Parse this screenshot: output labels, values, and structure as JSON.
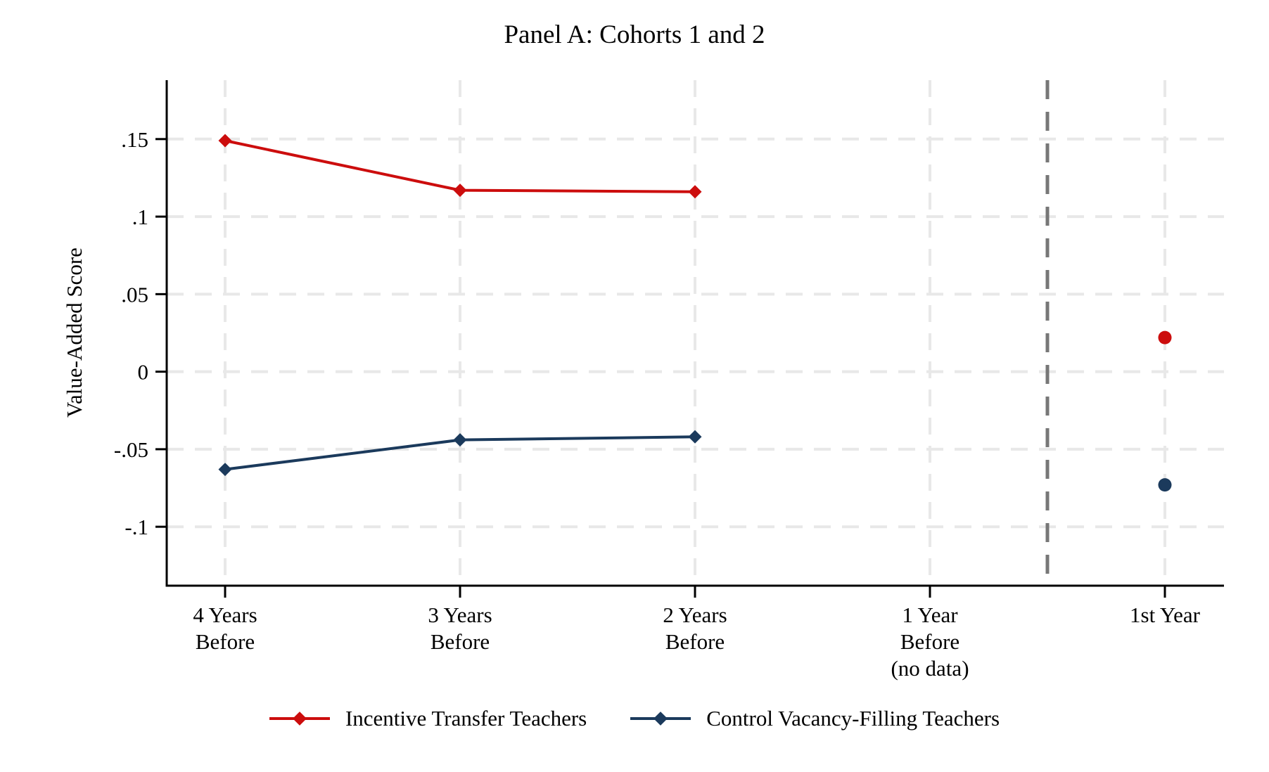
{
  "title": "Panel A: Cohorts 1 and 2",
  "chart_data": {
    "type": "line",
    "title": "Panel A: Cohorts 1 and 2",
    "xlabel": "",
    "ylabel": "Value-Added Score",
    "categories": [
      "4 Years\nBefore",
      "3 Years\nBefore",
      "2 Years\nBefore",
      "1 Year\nBefore\n(no data)",
      "1st Year"
    ],
    "yticks": [
      0.15,
      0.1,
      0.05,
      0,
      -0.05,
      -0.1
    ],
    "ytick_labels": [
      ".15",
      ".1",
      ".05",
      "0",
      "-.05",
      "-.1"
    ],
    "ylim": [
      -0.138,
      0.188
    ],
    "grid": true,
    "grid_style": "dashed",
    "legend_position": "bottom",
    "series": [
      {
        "name": "Incentive Transfer Teachers",
        "color": "#CC0D0D",
        "marker": "diamond",
        "isolated_marker": "circle",
        "values": [
          0.149,
          0.117,
          0.116,
          null,
          0.022
        ]
      },
      {
        "name": "Control Vacancy-Filling Teachers",
        "color": "#1B3A5C",
        "marker": "diamond",
        "isolated_marker": "circle",
        "values": [
          -0.063,
          -0.044,
          -0.042,
          null,
          -0.073
        ]
      }
    ],
    "divider": {
      "after_category_index": 3,
      "style": "dashed",
      "color": "#777777"
    },
    "colors": {
      "grid": "#E8E8E8",
      "axis": "#000000"
    }
  }
}
